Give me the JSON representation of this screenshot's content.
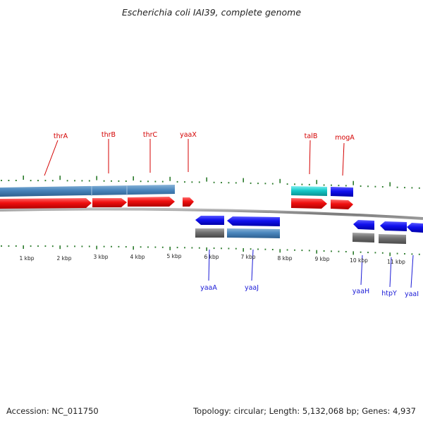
{
  "title": "Escherichia coli IAI39, complete genome",
  "footer": {
    "accession": "Accession: NC_011750",
    "summary": "Topology: circular; Length: 5,132,068 bp; Genes: 4,937"
  },
  "colors": {
    "forward_label": "#d40000",
    "reverse_label": "#1a1ad6",
    "tick": "#2a7a2a",
    "backbone": "#808080"
  },
  "ruler": {
    "unit": "kbp",
    "labels": [
      "1 kbp",
      "2 kbp",
      "3 kbp",
      "4 kbp",
      "5 kbp",
      "6 kbp",
      "7 kbp",
      "8 kbp",
      "9 kbp",
      "10 kbp",
      "11 kbp"
    ]
  },
  "genes": {
    "forward": [
      "thrA",
      "thrB",
      "thrC",
      "yaaX",
      "talB",
      "mogA"
    ],
    "reverse": [
      "yaaA",
      "yaaJ",
      "yaaH",
      "htpY",
      "yaaI"
    ]
  }
}
